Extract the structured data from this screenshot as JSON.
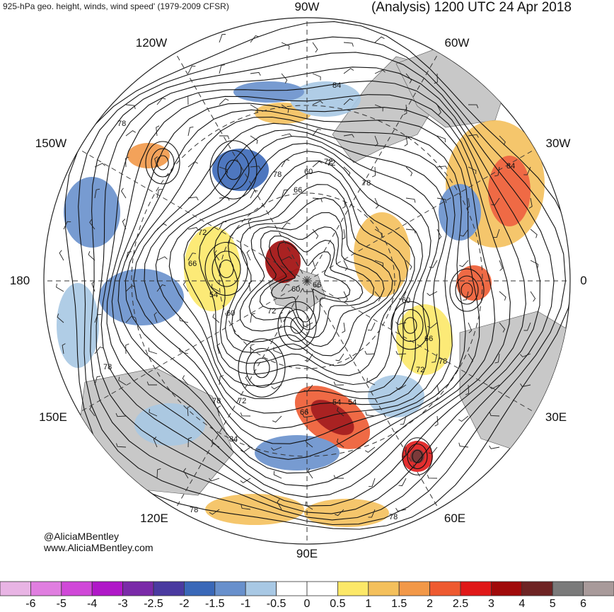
{
  "header": {
    "left_title": "925-hPa geo. height, winds, wind speed' (1979-2009 CFSR)",
    "right_title": "(Analysis) 1200 UTC 24 Apr 2018"
  },
  "longitude_labels": {
    "n90w": "90W",
    "n60w": "60W",
    "n30w": "30W",
    "e0": "0",
    "n30e": "30E",
    "n60e": "60E",
    "n90e": "90E",
    "n120e": "120E",
    "n150e": "150E",
    "w180": "180",
    "n150w": "150W",
    "n120w": "120W"
  },
  "contour_labels": [
    "84",
    "78",
    "72",
    "66",
    "60",
    "54",
    "84",
    "78",
    "78",
    "72",
    "66",
    "60",
    "72",
    "66",
    "54",
    "60",
    "72",
    "78",
    "78",
    "72",
    "66",
    "54",
    "84",
    "78",
    "78",
    "60",
    "66",
    "72",
    "78"
  ],
  "credit": {
    "handle": "@AliciaMBentley",
    "site": "www.AliciaMBentley.com"
  },
  "colorbar": {
    "ticks": [
      "-6",
      "-5",
      "-4",
      "-3",
      "-2.5",
      "-2",
      "-1.5",
      "-1",
      "-0.5",
      "0",
      "0.5",
      "1",
      "1.5",
      "2",
      "2.5",
      "3",
      "4",
      "5",
      "6"
    ],
    "colors": [
      "#e8b4e4",
      "#e07ee0",
      "#d048d8",
      "#b018c8",
      "#7a2aa8",
      "#4a3aa0",
      "#3a68b8",
      "#6890cc",
      "#a8c8e4",
      "#ffffff",
      "#ffffff",
      "#fce868",
      "#f4c05c",
      "#f29848",
      "#ee5a30",
      "#e01818",
      "#a00a0a",
      "#6e2424",
      "#7a7a7a",
      "#a89a9a"
    ]
  },
  "colors": {
    "land": "#c8c8c8",
    "contour": "#111111",
    "grid": "#333333"
  }
}
